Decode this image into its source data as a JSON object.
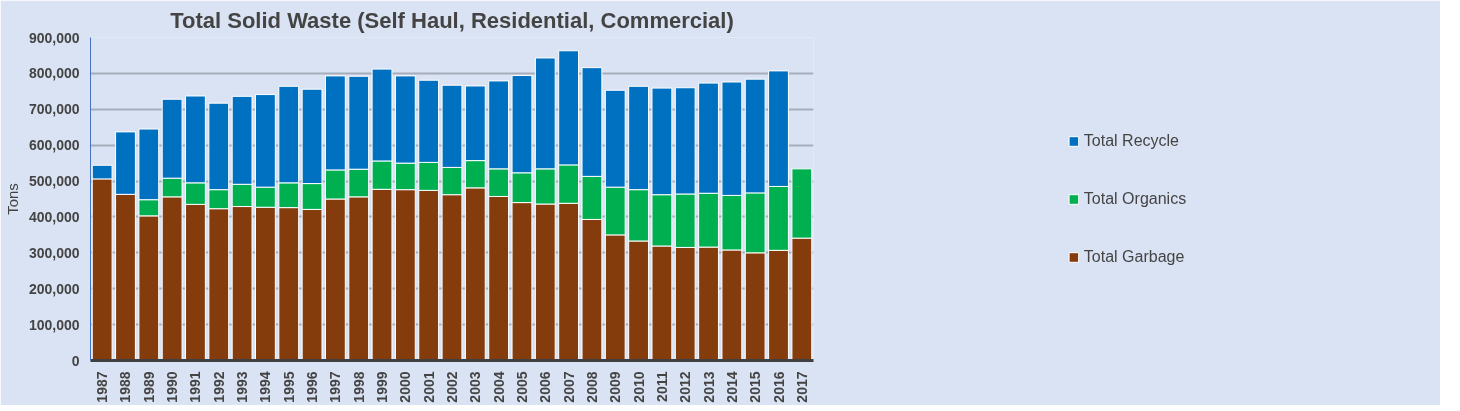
{
  "chart_data": {
    "type": "bar",
    "title": "Total Solid Waste (Self Haul, Residential, Commercial)",
    "ylabel": "Tons",
    "categories": [
      "1987",
      "1988",
      "1989",
      "1990",
      "1991",
      "1992",
      "1993",
      "1994",
      "1995",
      "1996",
      "1997",
      "1998",
      "1999",
      "2000",
      "2001",
      "2002",
      "2003",
      "2004",
      "2005",
      "2006",
      "2007",
      "2008",
      "2009",
      "2010",
      "2011",
      "2012",
      "2013",
      "2014",
      "2015",
      "2016",
      "2017"
    ],
    "stacked": true,
    "series": [
      {
        "name": "Total Garbage",
        "color": "#843c0c",
        "values": [
          506000,
          463000,
          403000,
          456000,
          435000,
          423000,
          429000,
          427000,
          426000,
          421000,
          450000,
          456000,
          477000,
          476000,
          474000,
          462000,
          481000,
          457000,
          440000,
          436000,
          438000,
          393000,
          350000,
          333000,
          319000,
          315000,
          316000,
          308000,
          300000,
          307000,
          341000
        ]
      },
      {
        "name": "Total Organics",
        "color": "#00b050",
        "values": [
          null,
          null,
          45000,
          52000,
          60000,
          53000,
          62000,
          56000,
          69000,
          72000,
          81000,
          77000,
          79000,
          74000,
          78000,
          76000,
          76000,
          77000,
          83000,
          98000,
          107000,
          120000,
          133000,
          143000,
          143000,
          149000,
          150000,
          152000,
          167000,
          178000,
          193000
        ]
      },
      {
        "name": "Total Recycle",
        "color": "#0070c0",
        "values": [
          38000,
          174000,
          197000,
          220000,
          242000,
          241000,
          245000,
          258000,
          269000,
          263000,
          262000,
          259000,
          256000,
          243000,
          229000,
          229000,
          208000,
          245000,
          271000,
          309000,
          318000,
          303000,
          270000,
          288000,
          297000,
          296000,
          307000,
          316000,
          317000,
          322000,
          null
        ]
      }
    ],
    "ylim": [
      0,
      900000
    ],
    "yticks": [
      0,
      {
        "value": 100000,
        "label": "100,000"
      },
      {
        "value": 200000,
        "label": "200,000"
      },
      {
        "value": 300000,
        "label": "300,000"
      },
      {
        "value": 400000,
        "label": "400,000"
      },
      {
        "value": 500000,
        "label": "500,000"
      },
      {
        "value": 600000,
        "label": "600,000"
      },
      {
        "value": 700000,
        "label": "700,000"
      },
      {
        "value": 800000,
        "label": "800,000"
      },
      {
        "value": 900000,
        "label": "900,000"
      }
    ],
    "grid": "y",
    "legend": "right"
  }
}
